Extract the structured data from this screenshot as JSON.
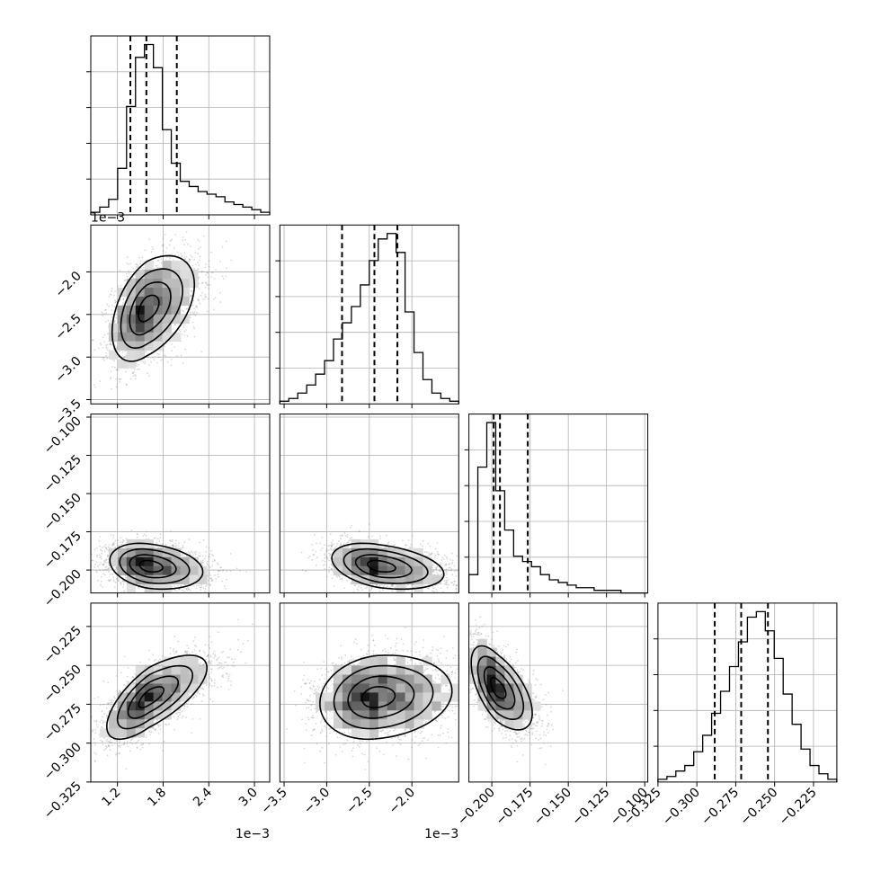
{
  "chart_data": {
    "type": "corner",
    "parameters": 4,
    "grid": true,
    "colors": {
      "ink": "#000000",
      "grid": "#b0b0b0",
      "scatter": "#8c8c8c"
    },
    "params": [
      {
        "name": "p0",
        "range": [
          0.00085,
          0.0032
        ],
        "ticks": [
          "1.2",
          "1.8",
          "2.4",
          "3.0"
        ],
        "tick_values": [
          0.0012,
          0.0018,
          0.0024,
          0.003
        ],
        "offset_text": "1e−3",
        "quantiles": [
          0.00137,
          0.00158,
          0.00198
        ],
        "hist": [
          1,
          3,
          6,
          18,
          42,
          61,
          66,
          57,
          33,
          20,
          13,
          11,
          9,
          8,
          7,
          5,
          4,
          3,
          2,
          1
        ]
      },
      {
        "name": "p1",
        "range": [
          -0.00355,
          -0.00145
        ],
        "ticks": [
          "−3.5",
          "−3.0",
          "−2.5",
          "−2.0"
        ],
        "tick_values": [
          -0.0035,
          -0.003,
          -0.0025,
          -0.002
        ],
        "offset_text": "1e−3",
        "quantiles": [
          -0.00282,
          -0.00244,
          -0.00217
        ],
        "hist": [
          1,
          2,
          4,
          7,
          11,
          16,
          24,
          30,
          36,
          44,
          53,
          61,
          63,
          56,
          34,
          19,
          9,
          4,
          2,
          1
        ]
      },
      {
        "name": "p2",
        "range": [
          -0.215,
          -0.098
        ],
        "ticks": [
          "−0.200",
          "−0.175",
          "−0.150",
          "−0.125",
          "−0.100"
        ],
        "tick_values": [
          -0.2,
          -0.175,
          -0.15,
          -0.125,
          -0.1
        ],
        "quantiles": [
          -0.1988,
          -0.1947,
          -0.1765
        ],
        "hist": [
          7,
          48,
          65,
          39,
          24,
          14,
          12,
          10,
          7,
          5,
          4,
          3,
          2,
          2,
          1,
          1,
          1,
          0,
          0,
          0
        ]
      },
      {
        "name": "p3",
        "range": [
          -0.325,
          -0.21
        ],
        "ticks": [
          "−0.325",
          "−0.300",
          "−0.275",
          "−0.250",
          "−0.225"
        ],
        "tick_values": [
          -0.325,
          -0.3,
          -0.275,
          -0.25,
          -0.225
        ],
        "ticks_y": [
          "−0.325",
          "−0.300",
          "−0.275",
          "−0.250",
          "−0.225"
        ],
        "quantiles": [
          -0.2885,
          -0.2715,
          -0.2543
        ],
        "hist": [
          1,
          2,
          4,
          6,
          11,
          17,
          25,
          33,
          42,
          51,
          60,
          62,
          55,
          45,
          32,
          21,
          12,
          6,
          3,
          1
        ]
      }
    ],
    "pairs": [
      {
        "x": 0,
        "y": 1,
        "center": [
          0.00159,
          -0.00243
        ],
        "sigma": [
          0.00023,
          0.00031
        ],
        "rho": 0.45,
        "skew": 0.0002
      },
      {
        "x": 0,
        "y": 2,
        "center": [
          0.00162,
          -0.1975
        ],
        "sigma": [
          0.00026,
          0.0075
        ],
        "rho": -0.25,
        "skew": 0
      },
      {
        "x": 1,
        "y": 2,
        "center": [
          -0.00238,
          -0.1975
        ],
        "sigma": [
          0.00028,
          0.0075
        ],
        "rho": -0.35,
        "skew": 0
      },
      {
        "x": 0,
        "y": 3,
        "center": [
          0.00162,
          -0.2705
        ],
        "sigma": [
          0.00028,
          0.0135
        ],
        "rho": 0.7,
        "skew": 0
      },
      {
        "x": 1,
        "y": 3,
        "center": [
          -0.00242,
          -0.2705
        ],
        "sigma": [
          0.00033,
          0.0135
        ],
        "rho": 0.15,
        "skew": 0
      },
      {
        "x": 2,
        "y": 3,
        "center": [
          -0.1965,
          -0.2645
        ],
        "sigma": [
          0.0085,
          0.0135
        ],
        "rho": -0.6,
        "skew": 0
      }
    ]
  }
}
